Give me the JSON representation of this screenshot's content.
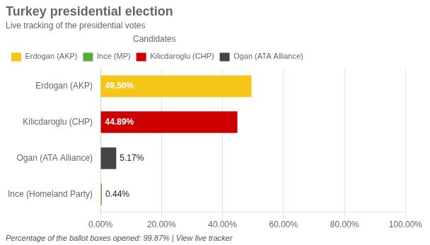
{
  "chart_data": {
    "type": "bar",
    "orientation": "horizontal",
    "title": "Turkey presidential election",
    "subtitle": "Live tracking of the presidential votes",
    "categories": [
      "Erdogan (AKP)",
      "Kilicdaroglu (CHP)",
      "Ogan (ATA Alliance)",
      "Ince (Homeland Party)"
    ],
    "series": [
      {
        "name": "Erdogan (AKP)",
        "color": "#f5c518",
        "values": [
          49.5,
          null,
          null,
          null
        ],
        "value_labels": [
          "49.50%",
          null,
          null,
          null
        ]
      },
      {
        "name": "Ince (MP)",
        "color": "#5aaa3b",
        "values": [
          null,
          null,
          null,
          0.44
        ],
        "value_labels": [
          null,
          null,
          null,
          "0.44%"
        ]
      },
      {
        "name": "Kilicdaroglu (CHP)",
        "color": "#cc0000",
        "values": [
          null,
          44.89,
          null,
          null
        ],
        "value_labels": [
          null,
          "44.89%",
          null,
          null
        ]
      },
      {
        "name": "Ogan (ATA Alliance)",
        "color": "#444444",
        "values": [
          null,
          null,
          5.17,
          null
        ],
        "value_labels": [
          null,
          null,
          "5.17%",
          null
        ]
      }
    ],
    "xlim": [
      0,
      100
    ],
    "xticks": [
      {
        "value": 0,
        "label": "0.00%"
      },
      {
        "value": 20,
        "label": "20.00%"
      },
      {
        "value": 40,
        "label": "40.00%"
      },
      {
        "value": 60,
        "label": "60.00%"
      },
      {
        "value": 80,
        "label": "80.00%"
      },
      {
        "value": 100,
        "label": "100.00%"
      }
    ],
    "grid": true,
    "legend": "top-left",
    "legend_title": "Candidates",
    "data_labels": true,
    "footnote": "Percentage of the ballot boxes opened: 99.87% | View live tracker"
  }
}
